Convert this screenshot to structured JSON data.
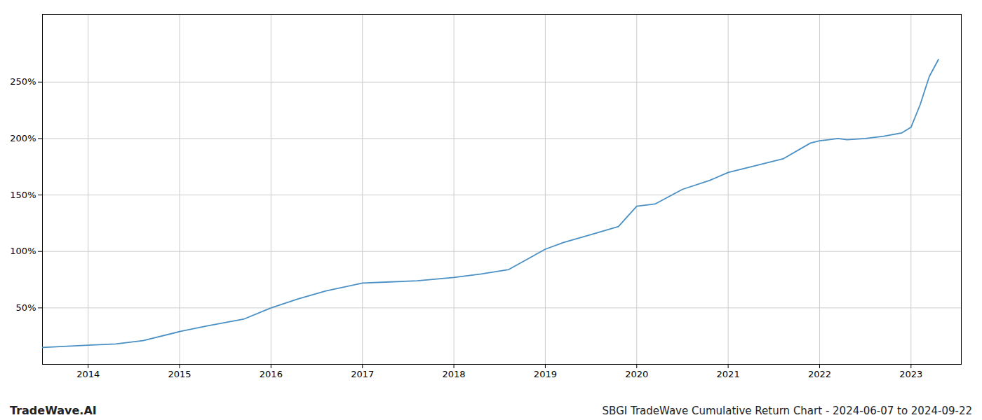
{
  "chart_data": {
    "type": "line",
    "title": "SBGI TradeWave Cumulative Return Chart - 2024-06-07 to 2024-09-22",
    "annotations": [
      {
        "text": "TradeWave.AI"
      }
    ],
    "x": [
      2013.5,
      2014.0,
      2014.3,
      2014.6,
      2015.0,
      2015.3,
      2015.7,
      2016.0,
      2016.3,
      2016.6,
      2017.0,
      2017.3,
      2017.6,
      2018.0,
      2018.3,
      2018.6,
      2019.0,
      2019.2,
      2019.5,
      2019.8,
      2020.0,
      2020.2,
      2020.5,
      2020.8,
      2021.0,
      2021.3,
      2021.6,
      2021.9,
      2022.0,
      2022.1,
      2022.2,
      2022.3,
      2022.5,
      2022.7,
      2022.9,
      2023.0,
      2023.1,
      2023.2,
      2023.3
    ],
    "values": [
      15,
      17,
      18,
      21,
      29,
      34,
      40,
      50,
      58,
      65,
      72,
      73,
      74,
      77,
      80,
      84,
      102,
      108,
      115,
      122,
      140,
      142,
      155,
      163,
      170,
      176,
      182,
      196,
      198,
      199,
      200,
      199,
      200,
      202,
      205,
      210,
      230,
      255,
      270
    ],
    "color": "#4a90c4",
    "xlim": [
      2013.5,
      2023.55
    ],
    "xticks": [
      2014,
      2015,
      2016,
      2017,
      2018,
      2019,
      2020,
      2021,
      2022,
      2023
    ],
    "ylim": [
      0,
      310
    ],
    "yticks": [
      {
        "value": 50,
        "label": "50%"
      },
      {
        "value": 100,
        "label": "100%"
      },
      {
        "value": 150,
        "label": "150%"
      },
      {
        "value": 200,
        "label": "200%"
      },
      {
        "value": 250,
        "label": "250%"
      }
    ],
    "grid": true
  }
}
